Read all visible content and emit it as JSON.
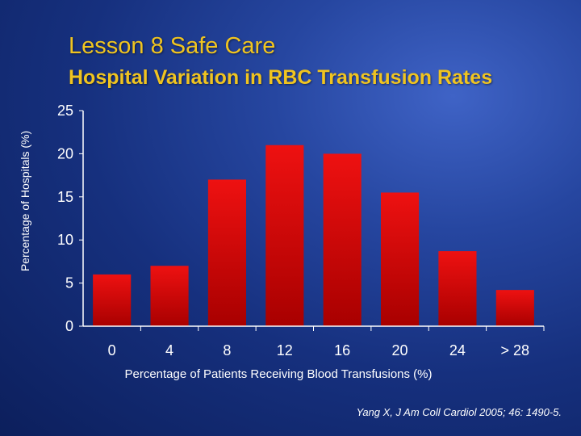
{
  "slide": {
    "title": "Lesson 8 Safe Care",
    "citation": "Yang X, J Am Coll Cardiol 2005; 46: 1490-5."
  },
  "chart_data": {
    "type": "bar",
    "title": "Hospital Variation in RBC Transfusion Rates",
    "xlabel": "Percentage of Patients Receiving Blood Transfusions (%)",
    "ylabel": "Percentage of Hospitals (%)",
    "categories": [
      "0",
      "4",
      "8",
      "12",
      "16",
      "20",
      "24",
      "> 28"
    ],
    "values": [
      6,
      7,
      17,
      21,
      20,
      15.5,
      8.7,
      4.2
    ],
    "ylim": [
      0,
      25
    ],
    "yticks": [
      0,
      5,
      10,
      15,
      20,
      25
    ],
    "grid": false,
    "colors": {
      "bar": "#ee1111",
      "bar_dark": "#a80000",
      "axis": "#ffffff"
    }
  }
}
